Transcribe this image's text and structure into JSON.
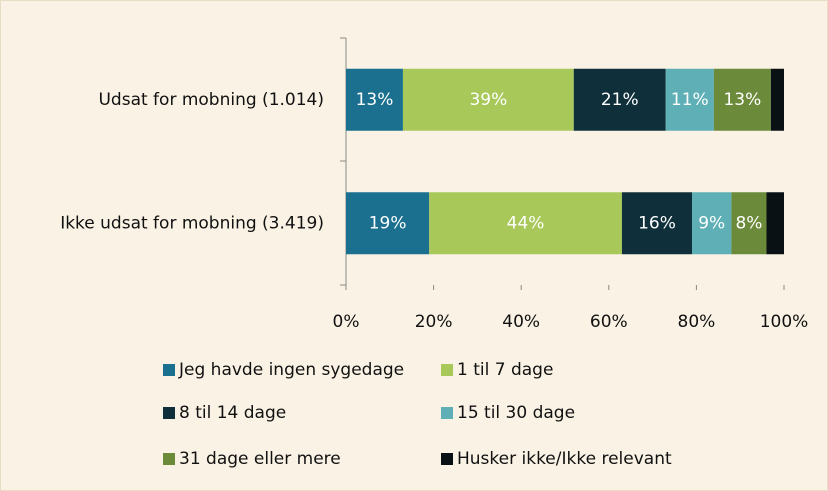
{
  "chart_data": {
    "type": "stacked-bar-horizontal",
    "categories": [
      "Udsat for mobning (1.014)",
      "Ikke udsat for mobning (3.419)"
    ],
    "series": [
      {
        "name": "Jeg havde ingen sygedage",
        "color": "#1b7090",
        "values": [
          13,
          19
        ],
        "value_labels": [
          "13%",
          "19%"
        ]
      },
      {
        "name": "1 til 7 dage",
        "color": "#a8c85a",
        "values": [
          39,
          44
        ],
        "value_labels": [
          "39%",
          "44%"
        ]
      },
      {
        "name": "8 til 14 dage",
        "color": "#0f2f3b",
        "values": [
          21,
          16
        ],
        "value_labels": [
          "21%",
          "16%"
        ]
      },
      {
        "name": "15 til 30 dage",
        "color": "#5fb0b6",
        "values": [
          11,
          9
        ],
        "value_labels": [
          "11%",
          "9%"
        ]
      },
      {
        "name": "31 dage eller mere",
        "color": "#6b8a3a",
        "values": [
          13,
          8
        ],
        "value_labels": [
          "13%",
          "8%"
        ]
      },
      {
        "name": "Husker ikke/Ikke relevant",
        "color": "#0a1115",
        "values": [
          3,
          4
        ],
        "value_labels": [
          null,
          null
        ]
      }
    ],
    "xlim": [
      0,
      100
    ],
    "xticks": [
      {
        "value": 0,
        "label": "0%"
      },
      {
        "value": 20,
        "label": "20%"
      },
      {
        "value": 40,
        "label": "40%"
      },
      {
        "value": 60,
        "label": "60%"
      },
      {
        "value": 80,
        "label": "80%"
      },
      {
        "value": 100,
        "label": "100%"
      }
    ]
  }
}
